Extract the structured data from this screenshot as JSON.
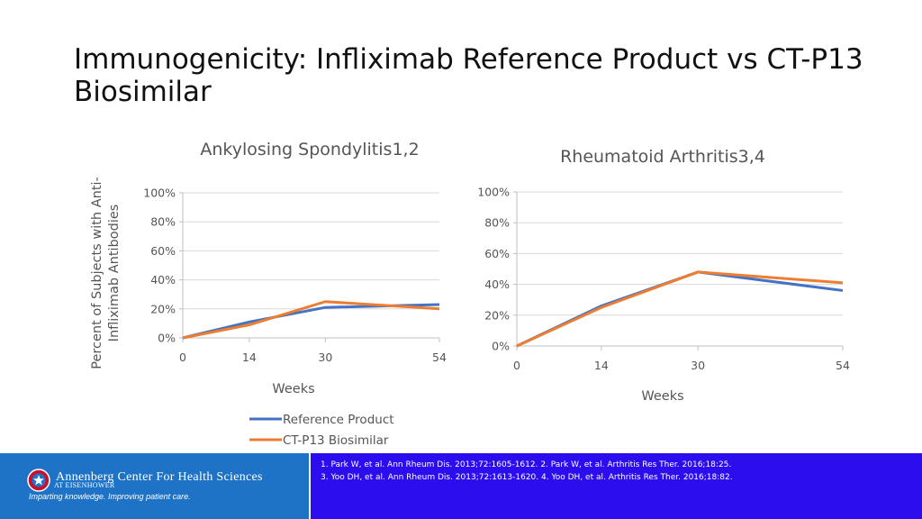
{
  "slide": {
    "title": "Immunogenicity: Infliximab Reference Product vs CT-P13 Biosimilar"
  },
  "colors": {
    "reference": "#4472c4",
    "biosimilar": "#ed7d31",
    "footer_left": "#1f73c6",
    "footer_right": "#2b0dee"
  },
  "legend": {
    "reference": "Reference Product",
    "biosimilar": "CT-P13 Biosimilar"
  },
  "chart_data": [
    {
      "type": "line",
      "title": "Ankylosing Spondylitis1,2",
      "xlabel": "Weeks",
      "ylabel": "Percent of Subjects with Anti-Infliximab Antibodies",
      "x": [
        0,
        14,
        30,
        54
      ],
      "y_ticks": [
        "0%",
        "20%",
        "40%",
        "60%",
        "80%",
        "100%"
      ],
      "ylim": [
        0,
        100
      ],
      "grid": true,
      "legend_position": "bottom",
      "series": [
        {
          "name": "Reference Product",
          "values": [
            0,
            11,
            21,
            23
          ]
        },
        {
          "name": "CT-P13 Biosimilar",
          "values": [
            0,
            9,
            25,
            20
          ]
        }
      ]
    },
    {
      "type": "line",
      "title": "Rheumatoid Arthritis3,4",
      "xlabel": "Weeks",
      "x": [
        0,
        14,
        30,
        54
      ],
      "y_ticks": [
        "0%",
        "20%",
        "40%",
        "60%",
        "80%",
        "100%"
      ],
      "ylim": [
        0,
        100
      ],
      "grid": true,
      "series": [
        {
          "name": "Reference Product",
          "values": [
            0,
            26,
            48,
            36
          ]
        },
        {
          "name": "CT-P13 Biosimilar",
          "values": [
            0,
            25,
            48,
            41
          ]
        }
      ]
    }
  ],
  "footer": {
    "org_name": "Annenberg Center For Health Sciences",
    "org_sub": "AT EISENHOWER",
    "tagline": "Imparting knowledge. Improving patient care.",
    "references": [
      "1. Park W, et al. Ann Rheum Dis. 2013;72:1605-1612.   2. Park W, et al. Arthritis Res Ther. 2016;18:25.",
      "3. Yoo DH, et al. Ann Rheum Dis. 2013;72:1613-1620.   4. Yoo DH, et al. Arthritis Res Ther. 2016;18:82."
    ]
  }
}
